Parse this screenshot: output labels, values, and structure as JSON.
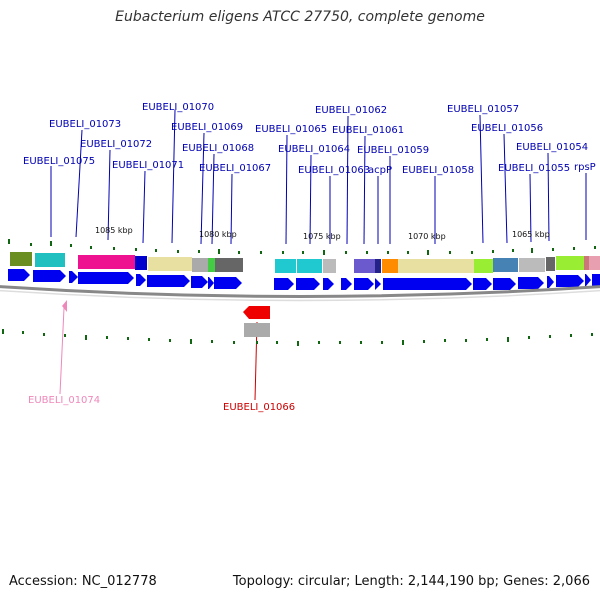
{
  "title": "Eubacterium eligens ATCC 27750, complete genome",
  "footer": {
    "accession": "Accession: NC_012778",
    "stats": "Topology: circular; Length: 2,144,190 bp; Genes: 2,066"
  },
  "colors": {
    "gene_label": "#0000b4",
    "backbone": "#999999",
    "forward_arrow": "#0000f0",
    "reverse_arrow": "#ee0000",
    "pink_label": "#ee88bb",
    "red_label": "#cc0000",
    "tick": "#116611"
  },
  "scale_labels": [
    "1085 kbp",
    "1080 kbp",
    "1075 kbp",
    "1070 kbp",
    "1065 kbp"
  ],
  "gene_labels": [
    {
      "id": "g01075",
      "text": "EUBELI_01075"
    },
    {
      "id": "g01073",
      "text": "EUBELI_01073"
    },
    {
      "id": "g01072",
      "text": "EUBELI_01072"
    },
    {
      "id": "g01071",
      "text": "EUBELI_01071"
    },
    {
      "id": "g01070",
      "text": "EUBELI_01070"
    },
    {
      "id": "g01069",
      "text": "EUBELI_01069"
    },
    {
      "id": "g01068",
      "text": "EUBELI_01068"
    },
    {
      "id": "g01067",
      "text": "EUBELI_01067"
    },
    {
      "id": "g01065",
      "text": "EUBELI_01065"
    },
    {
      "id": "g01064",
      "text": "EUBELI_01064"
    },
    {
      "id": "g01063",
      "text": "EUBELI_01063"
    },
    {
      "id": "g01062",
      "text": "EUBELI_01062"
    },
    {
      "id": "g01061",
      "text": "EUBELI_01061"
    },
    {
      "id": "g01059",
      "text": "EUBELI_01059"
    },
    {
      "id": "gacpP",
      "text": "acpP"
    },
    {
      "id": "g01058",
      "text": "EUBELI_01058"
    },
    {
      "id": "g01057",
      "text": "EUBELI_01057"
    },
    {
      "id": "g01056",
      "text": "EUBELI_01056"
    },
    {
      "id": "g01055",
      "text": "EUBELI_01055"
    },
    {
      "id": "g01054",
      "text": "EUBELI_01054"
    },
    {
      "id": "grpsP",
      "text": "rpsP"
    },
    {
      "id": "g01074",
      "text": "EUBELI_01074"
    },
    {
      "id": "g01066",
      "text": "EUBELI_01066"
    }
  ]
}
